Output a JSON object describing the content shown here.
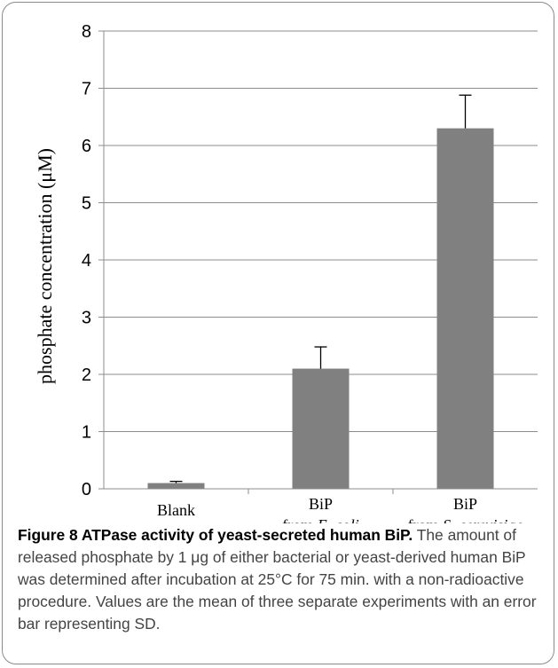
{
  "chart_data": {
    "type": "bar",
    "categories": [
      {
        "line1": "Blank",
        "line2_prefix": "",
        "line2_italic": ""
      },
      {
        "line1": "BiP",
        "line2_prefix": "from ",
        "line2_italic": "E. coli"
      },
      {
        "line1": "BiP",
        "line2_prefix": "from ",
        "line2_italic": "S. cerevisiae"
      }
    ],
    "values": [
      0.1,
      2.1,
      6.3
    ],
    "errors": [
      0.03,
      0.38,
      0.58
    ],
    "ylabel": "phosphate concentration  (μM)",
    "ylim": [
      0,
      8
    ],
    "yticks": [
      0,
      1,
      2,
      3,
      4,
      5,
      6,
      7,
      8
    ],
    "grid": true,
    "bar_color": "#808080"
  },
  "caption": {
    "title": "Figure 8 ATPase activity of yeast-secreted human BiP.",
    "text": "The amount of released phosphate by 1 μg of either bacterial or yeast-derived human BiP was determined after incubation at 25°C for 75 min. with a non-radioactive procedure. Values are the mean of three separate experiments with an error bar representing SD."
  }
}
